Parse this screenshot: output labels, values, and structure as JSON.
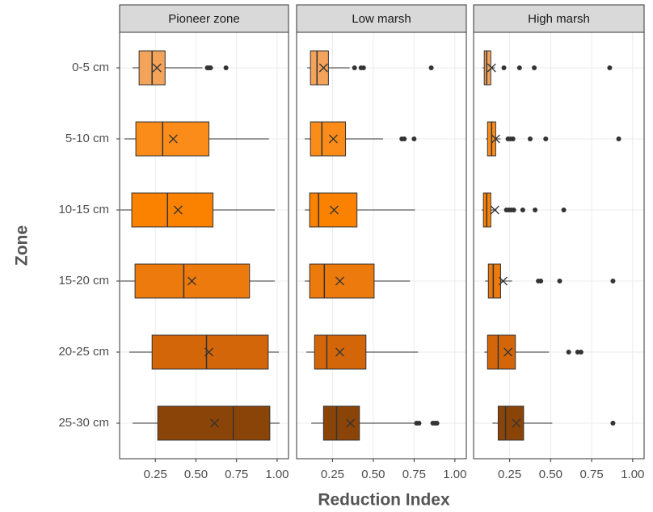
{
  "xlabel": "Reduction Index",
  "ylabel": "Zone",
  "categories": [
    "0-5 cm",
    "5-10 cm",
    "10-15 cm",
    "15-20 cm",
    "20-25 cm",
    "25-30 cm"
  ],
  "colors": [
    "#f4a35a",
    "#fb8c1a",
    "#fb8200",
    "#ec7a0c",
    "#d4660a",
    "#8b4407"
  ],
  "chart_data": [
    {
      "type": "boxplot",
      "title": "Pioneer zone",
      "xlim": [
        0.03,
        1.07
      ],
      "xticks": [
        0.25,
        {
          "value": 0.5,
          "label": "0.50"
        },
        0.75,
        {
          "value": 1,
          "label": "1.00"
        }
      ],
      "grid": true,
      "boxes": [
        {
          "whislo": 0.11,
          "q1": 0.15,
          "med": 0.23,
          "q3": 0.31,
          "whishi": 0.54,
          "mean": 0.26,
          "outliers": [
            0.57,
            0.58,
            0.59,
            0.685
          ]
        },
        {
          "whislo": 0.06,
          "q1": 0.13,
          "med": 0.295,
          "q3": 0.58,
          "whishi": 0.95,
          "mean": 0.36,
          "outliers": []
        },
        {
          "whislo": 0.035,
          "q1": 0.105,
          "med": 0.325,
          "q3": 0.605,
          "whishi": 0.985,
          "mean": 0.39,
          "outliers": []
        },
        {
          "whislo": 0.035,
          "q1": 0.125,
          "med": 0.425,
          "q3": 0.83,
          "whishi": 0.985,
          "mean": 0.475,
          "outliers": []
        },
        {
          "whislo": 0.09,
          "q1": 0.23,
          "med": 0.565,
          "q3": 0.945,
          "whishi": 1.01,
          "mean": 0.58,
          "outliers": []
        },
        {
          "whislo": 0.11,
          "q1": 0.265,
          "med": 0.73,
          "q3": 0.955,
          "whishi": 1.015,
          "mean": 0.615,
          "outliers": []
        }
      ]
    },
    {
      "type": "boxplot",
      "title": "Low marsh",
      "xlim": [
        0.03,
        1.07
      ],
      "xticks": [
        0.25,
        {
          "value": 0.5,
          "label": "0.50"
        },
        0.75,
        {
          "value": 1,
          "label": "1.00"
        }
      ],
      "grid": true,
      "boxes": [
        {
          "whislo": 0.095,
          "q1": 0.115,
          "med": 0.155,
          "q3": 0.225,
          "whishi": 0.355,
          "mean": 0.195,
          "outliers": [
            0.385,
            0.425,
            0.44,
            0.855
          ]
        },
        {
          "whislo": 0.08,
          "q1": 0.115,
          "med": 0.185,
          "q3": 0.33,
          "whishi": 0.56,
          "mean": 0.255,
          "outliers": [
            0.675,
            0.69,
            0.75
          ]
        },
        {
          "whislo": 0.08,
          "q1": 0.11,
          "med": 0.165,
          "q3": 0.4,
          "whishi": 0.755,
          "mean": 0.26,
          "outliers": []
        },
        {
          "whislo": 0.08,
          "q1": 0.11,
          "med": 0.2,
          "q3": 0.505,
          "whishi": 0.725,
          "mean": 0.295,
          "outliers": []
        },
        {
          "whislo": 0.09,
          "q1": 0.14,
          "med": 0.215,
          "q3": 0.455,
          "whishi": 0.775,
          "mean": 0.295,
          "outliers": []
        },
        {
          "whislo": 0.12,
          "q1": 0.195,
          "med": 0.275,
          "q3": 0.415,
          "whishi": 0.75,
          "mean": 0.36,
          "outliers": [
            0.765,
            0.78,
            0.865,
            0.88,
            0.89
          ]
        }
      ]
    },
    {
      "type": "boxplot",
      "title": "High marsh",
      "xlim": [
        0.03,
        1.07
      ],
      "xticks": [
        0.25,
        {
          "value": 0.5,
          "label": "0.50"
        },
        0.75,
        {
          "value": 1,
          "label": "1.00"
        }
      ],
      "grid": true,
      "boxes": [
        {
          "whislo": 0.085,
          "q1": 0.095,
          "med": 0.11,
          "q3": 0.135,
          "whishi": 0.16,
          "mean": 0.14,
          "outliers": [
            0.215,
            0.31,
            0.4,
            0.86
          ]
        },
        {
          "whislo": 0.105,
          "q1": 0.115,
          "med": 0.14,
          "q3": 0.165,
          "whishi": 0.195,
          "mean": 0.165,
          "outliers": [
            0.24,
            0.255,
            0.27,
            0.375,
            0.47,
            0.915
          ]
        },
        {
          "whislo": 0.08,
          "q1": 0.09,
          "med": 0.11,
          "q3": 0.135,
          "whishi": 0.17,
          "mean": 0.16,
          "outliers": [
            0.23,
            0.245,
            0.26,
            0.275,
            0.33,
            0.405,
            0.58
          ]
        },
        {
          "whislo": 0.1,
          "q1": 0.12,
          "med": 0.15,
          "q3": 0.195,
          "whishi": 0.265,
          "mean": 0.21,
          "outliers": [
            0.425,
            0.44,
            0.555,
            0.88
          ]
        },
        {
          "whislo": 0.095,
          "q1": 0.115,
          "med": 0.18,
          "q3": 0.285,
          "whishi": 0.49,
          "mean": 0.24,
          "outliers": [
            0.61,
            0.665,
            0.685
          ]
        },
        {
          "whislo": 0.145,
          "q1": 0.18,
          "med": 0.225,
          "q3": 0.335,
          "whishi": 0.51,
          "mean": 0.29,
          "outliers": [
            0.88
          ]
        }
      ]
    }
  ]
}
